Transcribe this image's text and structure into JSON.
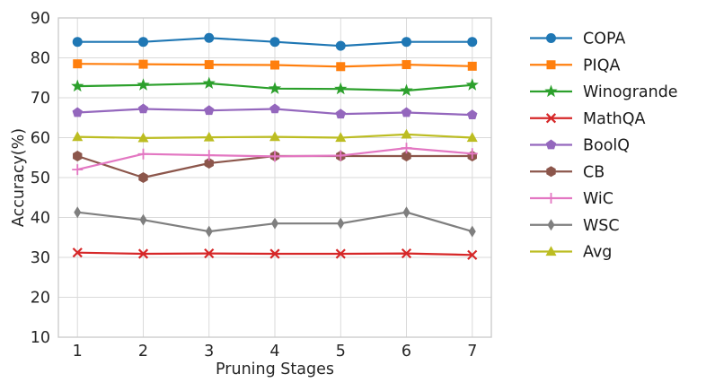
{
  "colors": {
    "background": "#ffffff",
    "grid": "#dadada",
    "frame": "#c9c9c9",
    "text": "#262626",
    "legend_text": "#1a1a1a"
  },
  "chart_data": {
    "type": "line",
    "title": "",
    "xlabel": "Pruning Stages",
    "ylabel": "Accuracy(%)",
    "x": [
      1,
      2,
      3,
      4,
      5,
      6,
      7
    ],
    "x_tick_labels": [
      "1",
      "2",
      "3",
      "4",
      "5",
      "6",
      "7"
    ],
    "yticks": [
      10,
      20,
      30,
      40,
      50,
      60,
      70,
      80,
      90
    ],
    "xlim": [
      0.71,
      7.29
    ],
    "ylim": [
      10,
      90
    ],
    "grid": true,
    "legend_position": "right",
    "series": [
      {
        "name": "COPA",
        "color": "#1f77b4",
        "marker": "circle",
        "values": [
          84.0,
          84.0,
          85.0,
          84.0,
          83.0,
          84.0,
          84.0
        ]
      },
      {
        "name": "PIQA",
        "color": "#ff7f0e",
        "marker": "square",
        "values": [
          78.5,
          78.4,
          78.3,
          78.2,
          77.8,
          78.3,
          77.9
        ]
      },
      {
        "name": "Winogrande",
        "color": "#2ca02c",
        "marker": "star",
        "values": [
          72.9,
          73.2,
          73.6,
          72.3,
          72.2,
          71.8,
          73.2
        ]
      },
      {
        "name": "MathQA",
        "color": "#d62728",
        "marker": "x",
        "values": [
          31.2,
          30.9,
          31.0,
          30.9,
          30.9,
          31.0,
          30.6
        ]
      },
      {
        "name": "BoolQ",
        "color": "#9467bd",
        "marker": "pentagon",
        "values": [
          66.3,
          67.2,
          66.8,
          67.2,
          65.9,
          66.3,
          65.7
        ]
      },
      {
        "name": "CB",
        "color": "#8c564b",
        "marker": "hexagon",
        "values": [
          55.4,
          50.0,
          53.6,
          55.4,
          55.4,
          55.4,
          55.4
        ]
      },
      {
        "name": "WiC",
        "color": "#e377c2",
        "marker": "plus",
        "values": [
          52.0,
          55.9,
          55.6,
          55.3,
          55.5,
          57.4,
          56.0
        ]
      },
      {
        "name": "WSC",
        "color": "#7f7f7f",
        "marker": "diamond",
        "values": [
          41.3,
          39.4,
          36.5,
          38.5,
          38.5,
          41.3,
          36.5
        ]
      },
      {
        "name": "Avg",
        "color": "#bcbd22",
        "marker": "triangle",
        "values": [
          60.2,
          59.9,
          60.1,
          60.2,
          60.0,
          60.8,
          60.0
        ]
      }
    ]
  }
}
